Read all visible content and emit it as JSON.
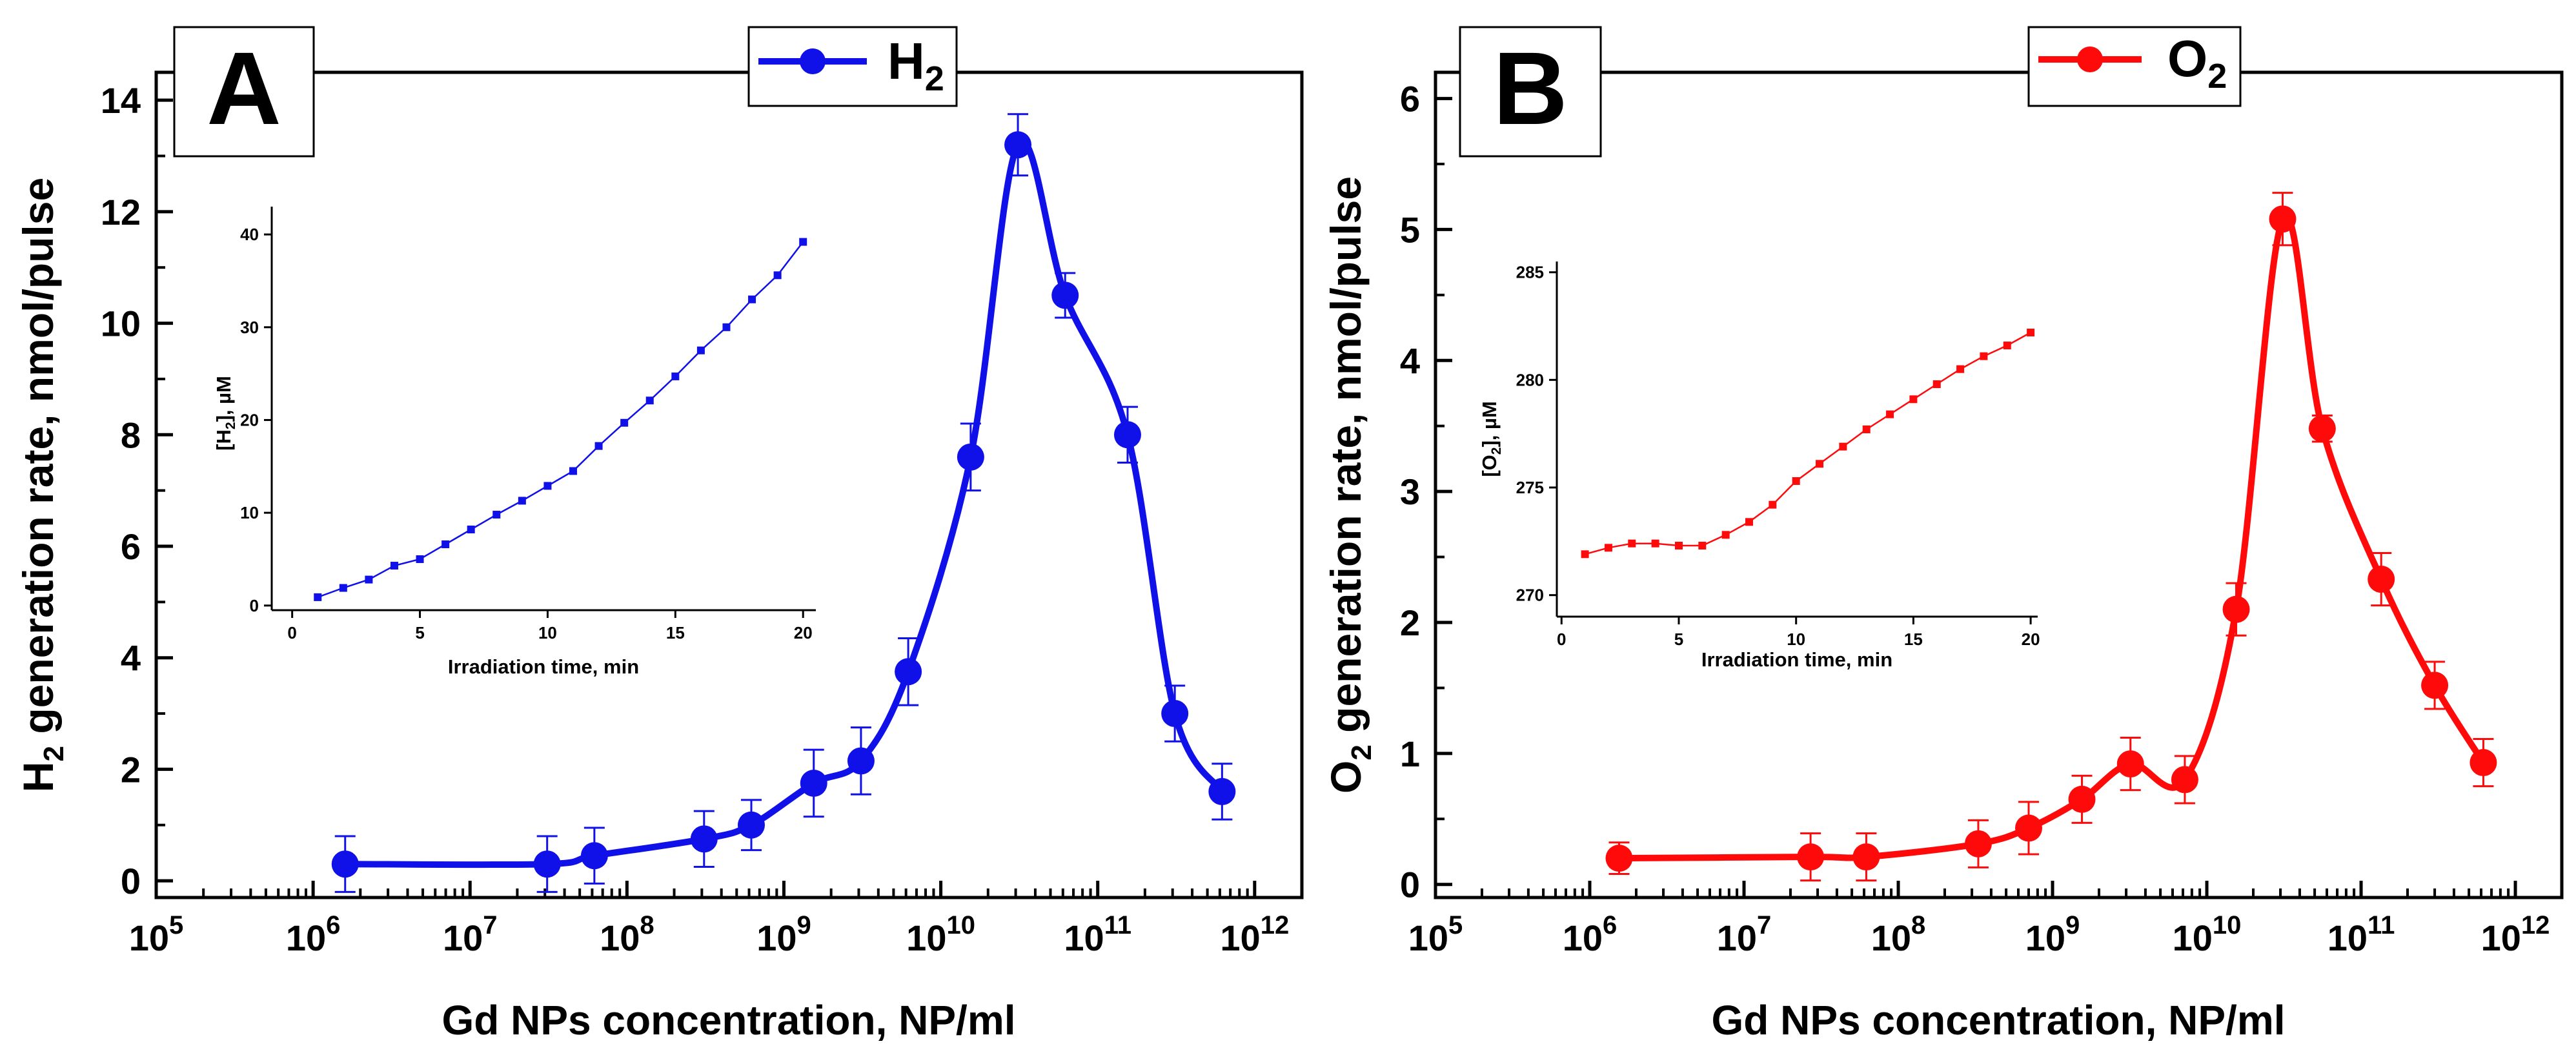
{
  "chart_data": [
    {
      "type": "scatter",
      "panel_label": "A",
      "xlabel": "Gd NPs concentration, NP/ml",
      "ylabel_species": "H",
      "ylabel_sub": "2",
      "ylabel_rest": " generation rate, nmol/pulse",
      "xscale": "log",
      "xlim": [
        100000,
        2000000000000
      ],
      "x_ticks": [
        {
          "value": 100000,
          "base": "10",
          "exp": "5"
        },
        {
          "value": 1000000,
          "base": "10",
          "exp": "6"
        },
        {
          "value": 10000000,
          "base": "10",
          "exp": "7"
        },
        {
          "value": 100000000,
          "base": "10",
          "exp": "8"
        },
        {
          "value": 1000000000,
          "base": "10",
          "exp": "9"
        },
        {
          "value": 10000000000,
          "base": "10",
          "exp": "10"
        },
        {
          "value": 100000000000,
          "base": "10",
          "exp": "11"
        },
        {
          "value": 1000000000000,
          "base": "10",
          "exp": "12"
        }
      ],
      "ylim": [
        -0.3,
        14.5
      ],
      "y_ticks": [
        {
          "value": 0,
          "label": "0"
        },
        {
          "value": 2,
          "label": "2"
        },
        {
          "value": 4,
          "label": "4"
        },
        {
          "value": 6,
          "label": "6"
        },
        {
          "value": 8,
          "label": "8"
        },
        {
          "value": 10,
          "label": "10"
        },
        {
          "value": 12,
          "label": "12"
        },
        {
          "value": 14,
          "label": "14"
        }
      ],
      "legend": {
        "base": "H",
        "sub": "2",
        "position": "top-center"
      },
      "color": "#1010e8",
      "series": [
        {
          "name": "H2",
          "x": [
            1600000,
            31000000,
            62000000,
            310000000,
            620000000,
            1550000000,
            3100000000,
            6200000000,
            15500000000,
            31000000000,
            62000000000,
            155000000000,
            310000000000,
            620000000000
          ],
          "y": [
            0.3,
            0.3,
            0.45,
            0.75,
            1.0,
            1.75,
            2.15,
            3.75,
            7.6,
            13.2,
            10.5,
            8.0,
            3.0,
            1.6
          ],
          "err": [
            0.5,
            0.5,
            0.5,
            0.5,
            0.45,
            0.6,
            0.6,
            0.6,
            0.6,
            0.55,
            0.4,
            0.5,
            0.5,
            0.5
          ]
        }
      ],
      "inset": {
        "xlabel": "Irradiation time, min",
        "ylabel_base": "[H",
        "ylabel_sub": "2",
        "ylabel_rest": "], µM",
        "xlim": [
          -0.8,
          20.5
        ],
        "ylim": [
          -0.5,
          43
        ],
        "x_ticks": [
          {
            "value": 0,
            "label": "0"
          },
          {
            "value": 5,
            "label": "5"
          },
          {
            "value": 10,
            "label": "10"
          },
          {
            "value": 15,
            "label": "15"
          },
          {
            "value": 20,
            "label": "20"
          }
        ],
        "y_ticks": [
          {
            "value": 0,
            "label": "0"
          },
          {
            "value": 10,
            "label": "10"
          },
          {
            "value": 20,
            "label": "20"
          },
          {
            "value": 30,
            "label": "30"
          },
          {
            "value": 40,
            "label": "40"
          }
        ],
        "x": [
          1,
          2,
          3,
          4,
          5,
          6,
          7,
          8,
          9,
          10,
          11,
          12,
          13,
          14,
          15,
          16,
          17,
          18,
          19,
          20
        ],
        "y": [
          0.9,
          1.9,
          2.8,
          4.3,
          5.0,
          6.6,
          8.2,
          9.8,
          11.3,
          12.9,
          14.5,
          17.2,
          19.7,
          22.1,
          24.7,
          27.5,
          30.0,
          33.0,
          35.6,
          39.2
        ]
      }
    },
    {
      "type": "scatter",
      "panel_label": "B",
      "xlabel": "Gd NPs concentration, NP/ml",
      "ylabel_species": "O",
      "ylabel_sub": "2",
      "ylabel_rest": " generation rate, nmol/pulse",
      "xscale": "log",
      "xlim": [
        100000,
        2000000000000
      ],
      "x_ticks": [
        {
          "value": 100000,
          "base": "10",
          "exp": "5"
        },
        {
          "value": 1000000,
          "base": "10",
          "exp": "6"
        },
        {
          "value": 10000000,
          "base": "10",
          "exp": "7"
        },
        {
          "value": 100000000,
          "base": "10",
          "exp": "8"
        },
        {
          "value": 1000000000,
          "base": "10",
          "exp": "9"
        },
        {
          "value": 10000000000,
          "base": "10",
          "exp": "10"
        },
        {
          "value": 100000000000,
          "base": "10",
          "exp": "11"
        },
        {
          "value": 1000000000000,
          "base": "10",
          "exp": "12"
        }
      ],
      "ylim": [
        -0.1,
        6.2
      ],
      "y_ticks": [
        {
          "value": 0,
          "label": "0"
        },
        {
          "value": 1,
          "label": "1"
        },
        {
          "value": 2,
          "label": "2"
        },
        {
          "value": 3,
          "label": "3"
        },
        {
          "value": 4,
          "label": "4"
        },
        {
          "value": 5,
          "label": "5"
        },
        {
          "value": 6,
          "label": "6"
        }
      ],
      "legend": {
        "base": "O",
        "sub": "2",
        "position": "top-center"
      },
      "color": "#ff0a0a",
      "series": [
        {
          "name": "O2",
          "x": [
            1550000,
            27000000,
            62000000,
            330000000,
            700000000,
            1550000000,
            3200000000,
            7200000000,
            15500000000,
            31000000000,
            56000000000,
            135000000000,
            300000000000,
            620000000000
          ],
          "y": [
            0.2,
            0.21,
            0.21,
            0.31,
            0.43,
            0.65,
            0.92,
            0.8,
            2.1,
            5.08,
            3.48,
            2.33,
            1.52,
            0.93
          ],
          "err": [
            0.12,
            0.18,
            0.18,
            0.18,
            0.2,
            0.18,
            0.2,
            0.18,
            0.2,
            0.2,
            0.1,
            0.2,
            0.18,
            0.18
          ]
        }
      ],
      "inset": {
        "xlabel": "Irradiation time, min",
        "ylabel_base": "[O",
        "ylabel_sub": "2",
        "ylabel_rest": "], µM",
        "xlim": [
          -0.2,
          20.3
        ],
        "ylim": [
          269,
          285.5
        ],
        "x_ticks": [
          {
            "value": 0,
            "label": "0"
          },
          {
            "value": 5,
            "label": "5"
          },
          {
            "value": 10,
            "label": "10"
          },
          {
            "value": 15,
            "label": "15"
          },
          {
            "value": 20,
            "label": "20"
          }
        ],
        "y_ticks": [
          {
            "value": 270,
            "label": "270"
          },
          {
            "value": 275,
            "label": "275"
          },
          {
            "value": 280,
            "label": "280"
          },
          {
            "value": 285,
            "label": "285"
          }
        ],
        "x": [
          1,
          2,
          3,
          4,
          5,
          6,
          7,
          8,
          9,
          10,
          11,
          12,
          13,
          14,
          15,
          16,
          17,
          18,
          19,
          20
        ],
        "y": [
          271.9,
          272.2,
          272.4,
          272.4,
          272.3,
          272.3,
          272.8,
          273.4,
          274.2,
          275.3,
          276.1,
          276.9,
          277.7,
          278.4,
          279.1,
          279.8,
          280.5,
          281.1,
          281.6,
          282.2
        ]
      }
    }
  ]
}
